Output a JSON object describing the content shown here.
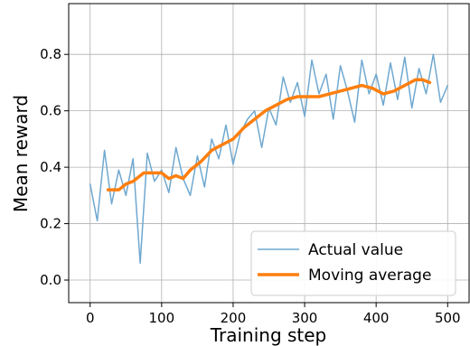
{
  "chart_data": {
    "type": "line",
    "xlabel": "Training step",
    "ylabel": "Mean reward",
    "xlim": [
      -30,
      530
    ],
    "ylim": [
      -0.08,
      0.98
    ],
    "xticks": [
      0,
      100,
      200,
      300,
      400,
      500
    ],
    "yticks": [
      0.0,
      0.2,
      0.4,
      0.6,
      0.8
    ],
    "xtick_labels": [
      "0",
      "100",
      "200",
      "300",
      "400",
      "500"
    ],
    "ytick_labels": [
      "0.0",
      "0.2",
      "0.4",
      "0.6",
      "0.8"
    ],
    "grid": true,
    "legend_position": "lower-right",
    "series": [
      {
        "name": "Actual value",
        "color": "#6fa8d0",
        "x": [
          0,
          10,
          20,
          30,
          40,
          50,
          60,
          70,
          80,
          90,
          100,
          110,
          120,
          130,
          140,
          150,
          160,
          170,
          180,
          190,
          200,
          210,
          220,
          230,
          240,
          250,
          260,
          270,
          280,
          290,
          300,
          310,
          320,
          330,
          340,
          350,
          360,
          370,
          380,
          390,
          400,
          410,
          420,
          430,
          440,
          450,
          460,
          470,
          480,
          490,
          500
        ],
        "y": [
          0.34,
          0.21,
          0.46,
          0.27,
          0.39,
          0.3,
          0.43,
          0.06,
          0.45,
          0.35,
          0.39,
          0.31,
          0.47,
          0.36,
          0.3,
          0.44,
          0.33,
          0.5,
          0.43,
          0.55,
          0.41,
          0.52,
          0.57,
          0.6,
          0.47,
          0.61,
          0.55,
          0.72,
          0.63,
          0.7,
          0.58,
          0.78,
          0.66,
          0.73,
          0.57,
          0.76,
          0.67,
          0.56,
          0.78,
          0.66,
          0.73,
          0.62,
          0.77,
          0.64,
          0.79,
          0.61,
          0.75,
          0.66,
          0.8,
          0.63,
          0.69
        ]
      },
      {
        "name": "Moving average",
        "color": "#ff7f0e",
        "x": [
          25,
          40,
          50,
          60,
          75,
          90,
          100,
          110,
          120,
          130,
          140,
          155,
          170,
          185,
          200,
          215,
          230,
          245,
          260,
          275,
          290,
          305,
          320,
          335,
          350,
          365,
          380,
          395,
          410,
          425,
          440,
          455,
          465,
          475
        ],
        "y": [
          0.32,
          0.32,
          0.34,
          0.35,
          0.38,
          0.38,
          0.38,
          0.36,
          0.37,
          0.36,
          0.39,
          0.42,
          0.46,
          0.48,
          0.5,
          0.54,
          0.57,
          0.6,
          0.62,
          0.64,
          0.65,
          0.65,
          0.65,
          0.66,
          0.67,
          0.68,
          0.69,
          0.68,
          0.66,
          0.67,
          0.69,
          0.71,
          0.71,
          0.7
        ]
      }
    ]
  }
}
